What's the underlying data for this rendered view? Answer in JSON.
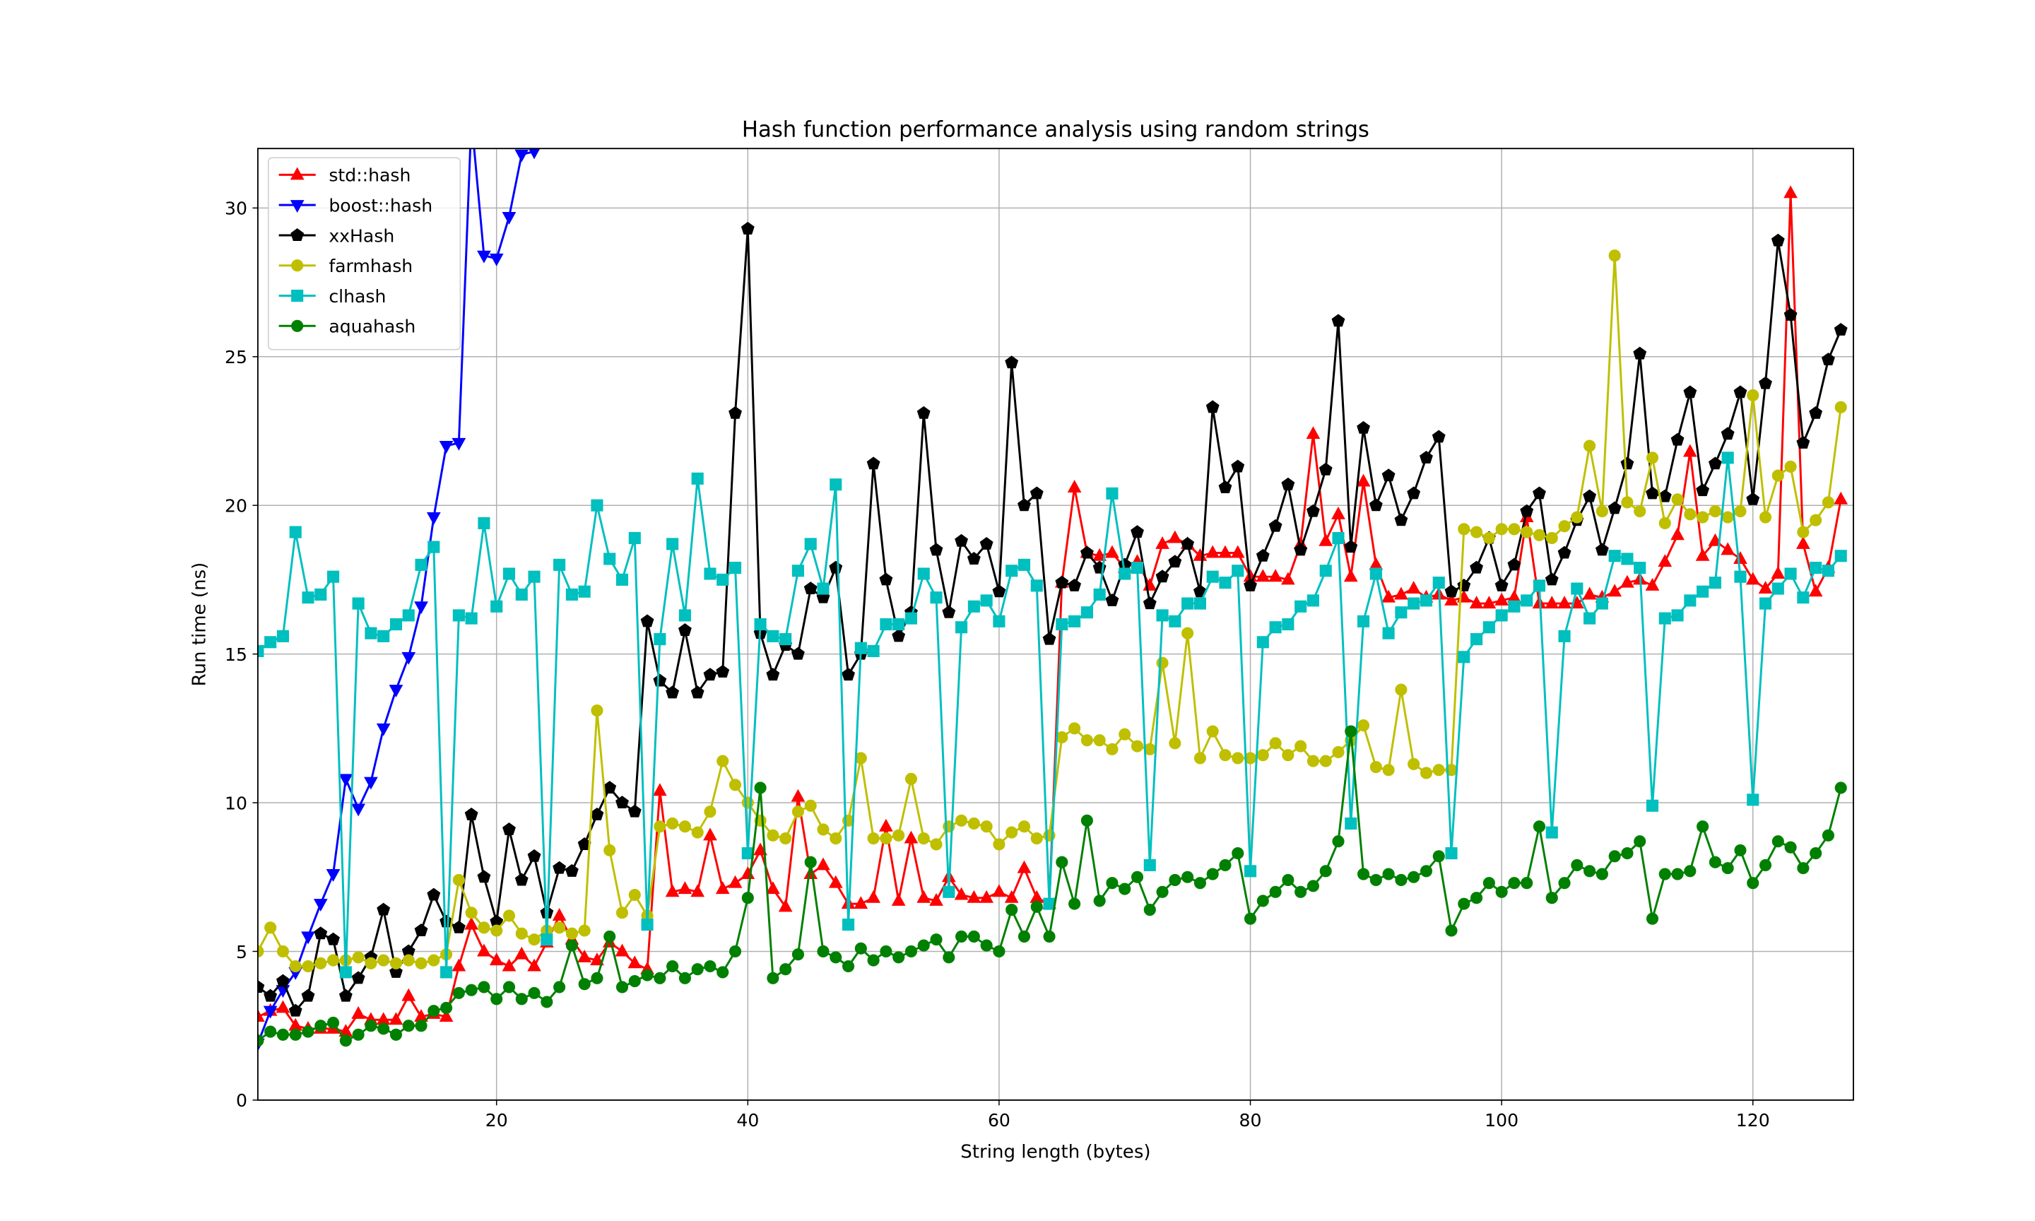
{
  "chart_data": {
    "type": "line",
    "title": "Hash function performance analysis using random strings",
    "x_label": "String length (bytes)",
    "y_label": "Run time (ns)",
    "x": [
      1,
      2,
      3,
      4,
      5,
      6,
      7,
      8,
      9,
      10,
      11,
      12,
      13,
      14,
      15,
      16,
      17,
      18,
      19,
      20,
      21,
      22,
      23,
      24,
      25,
      26,
      27,
      28,
      29,
      30,
      31,
      32,
      33,
      34,
      35,
      36,
      37,
      38,
      39,
      40,
      41,
      42,
      43,
      44,
      45,
      46,
      47,
      48,
      49,
      50,
      51,
      52,
      53,
      54,
      55,
      56,
      57,
      58,
      59,
      60,
      61,
      62,
      63,
      64,
      65,
      66,
      67,
      68,
      69,
      70,
      71,
      72,
      73,
      74,
      75,
      76,
      77,
      78,
      79,
      80,
      81,
      82,
      83,
      84,
      85,
      86,
      87,
      88,
      89,
      90,
      91,
      92,
      93,
      94,
      95,
      96,
      97,
      98,
      99,
      100,
      101,
      102,
      103,
      104,
      105,
      106,
      107,
      108,
      109,
      110,
      111,
      112,
      113,
      114,
      115,
      116,
      117,
      118,
      119,
      120,
      121,
      122,
      123,
      124,
      125,
      126,
      127
    ],
    "series": [
      {
        "name": "std::hash",
        "color": "#ff0000",
        "marker": "^",
        "values": [
          2.8,
          3.0,
          3.1,
          2.5,
          2.4,
          2.4,
          2.4,
          2.3,
          2.9,
          2.7,
          2.7,
          2.7,
          3.5,
          2.8,
          2.9,
          2.8,
          4.5,
          5.9,
          5.0,
          4.7,
          4.5,
          4.9,
          4.5,
          5.3,
          6.2,
          5.4,
          4.8,
          4.7,
          5.3,
          5.0,
          4.6,
          4.4,
          10.4,
          7.0,
          7.1,
          7.0,
          8.9,
          7.1,
          7.3,
          7.6,
          8.4,
          7.1,
          6.5,
          10.2,
          7.6,
          7.9,
          7.3,
          6.6,
          6.6,
          6.8,
          9.2,
          6.7,
          8.8,
          6.8,
          6.7,
          7.5,
          6.9,
          6.8,
          6.8,
          7.0,
          6.8,
          7.8,
          6.8,
          6.6,
          17.4,
          20.6,
          18.4,
          18.3,
          18.4,
          17.9,
          18.1,
          17.3,
          18.7,
          18.9,
          18.7,
          18.3,
          18.4,
          18.4,
          18.4,
          17.6,
          17.6,
          17.6,
          17.5,
          18.7,
          22.4,
          18.8,
          19.7,
          17.6,
          20.8,
          18.0,
          16.9,
          17.0,
          17.2,
          16.9,
          17.0,
          16.8,
          16.9,
          16.7,
          16.7,
          16.8,
          16.9,
          19.6,
          16.7,
          16.7,
          16.7,
          16.7,
          17.0,
          16.9,
          17.1,
          17.4,
          17.5,
          17.3,
          18.1,
          19.0,
          21.8,
          18.3,
          18.8,
          18.5,
          18.2,
          17.5,
          17.2,
          17.7,
          30.5,
          18.7,
          17.1,
          17.9,
          20.2
        ]
      },
      {
        "name": "boost::hash",
        "color": "#0000ff",
        "marker": "v",
        "x": [
          1,
          2,
          3,
          4,
          5,
          6,
          7,
          8,
          9,
          10,
          11,
          12,
          13,
          14,
          15,
          16,
          17,
          18,
          19,
          20,
          21,
          22,
          23,
          24
        ],
        "values": [
          1.9,
          3.0,
          3.7,
          4.3,
          5.5,
          6.6,
          7.6,
          10.8,
          9.8,
          10.7,
          12.5,
          13.8,
          14.9,
          16.6,
          19.6,
          22.0,
          22.1,
          33.0,
          28.4,
          28.3,
          29.7,
          31.8,
          31.9,
          33.0
        ]
      },
      {
        "name": "xxHash",
        "color": "#000000",
        "marker": "p",
        "values": [
          3.8,
          3.5,
          4.0,
          3.0,
          3.5,
          5.6,
          5.4,
          3.5,
          4.1,
          4.8,
          6.4,
          4.3,
          5.0,
          5.7,
          6.9,
          6.0,
          5.8,
          9.6,
          7.5,
          6.0,
          9.1,
          7.4,
          8.2,
          6.3,
          7.8,
          7.7,
          8.6,
          9.6,
          10.5,
          10.0,
          9.7,
          16.1,
          14.1,
          13.7,
          15.8,
          13.7,
          14.3,
          14.4,
          23.1,
          29.3,
          15.7,
          14.3,
          15.3,
          15.0,
          17.2,
          16.9,
          17.9,
          14.3,
          15.0,
          21.4,
          17.5,
          15.6,
          16.4,
          23.1,
          18.5,
          16.4,
          18.8,
          18.2,
          18.7,
          17.1,
          24.8,
          20.0,
          20.4,
          15.5,
          17.4,
          17.3,
          18.4,
          17.9,
          16.8,
          18.0,
          19.1,
          16.7,
          17.6,
          18.1,
          18.7,
          17.1,
          23.3,
          20.6,
          21.3,
          17.3,
          18.3,
          19.3,
          20.7,
          18.5,
          19.8,
          21.2,
          26.2,
          18.6,
          22.6,
          20.0,
          21.0,
          19.5,
          20.4,
          21.6,
          22.3,
          17.1,
          17.3,
          17.9,
          18.9,
          17.3,
          18.0,
          19.8,
          20.4,
          17.5,
          18.4,
          19.5,
          20.3,
          18.5,
          19.9,
          21.4,
          25.1,
          20.4,
          20.3,
          22.2,
          23.8,
          20.5,
          21.4,
          22.4,
          23.8,
          20.2,
          24.1,
          28.9,
          26.4,
          22.1,
          23.1,
          24.9,
          25.9
        ]
      },
      {
        "name": "farmhash",
        "color": "#bfbf00",
        "marker": "o",
        "values": [
          5.0,
          5.8,
          5.0,
          4.5,
          4.5,
          4.6,
          4.7,
          4.7,
          4.8,
          4.6,
          4.7,
          4.6,
          4.7,
          4.6,
          4.7,
          4.9,
          7.4,
          6.3,
          5.8,
          5.7,
          6.2,
          5.6,
          5.4,
          5.7,
          5.8,
          5.6,
          5.7,
          13.1,
          8.4,
          6.3,
          6.9,
          6.2,
          9.2,
          9.3,
          9.2,
          9.0,
          9.7,
          11.4,
          10.6,
          10.0,
          9.4,
          8.9,
          8.8,
          9.7,
          9.9,
          9.1,
          8.8,
          9.4,
          11.5,
          8.8,
          8.8,
          8.9,
          10.8,
          8.8,
          8.6,
          9.2,
          9.4,
          9.3,
          9.2,
          8.6,
          9.0,
          9.2,
          8.8,
          8.9,
          12.2,
          12.5,
          12.1,
          12.1,
          11.8,
          12.3,
          11.9,
          11.8,
          14.7,
          12.0,
          15.7,
          11.5,
          12.4,
          11.6,
          11.5,
          11.5,
          11.6,
          12.0,
          11.6,
          11.9,
          11.4,
          11.4,
          11.7,
          12.1,
          12.6,
          11.2,
          11.1,
          13.8,
          11.3,
          11.0,
          11.1,
          11.1,
          19.2,
          19.1,
          18.9,
          19.2,
          19.2,
          19.1,
          19.0,
          18.9,
          19.3,
          19.6,
          22.0,
          19.8,
          28.4,
          20.1,
          19.8,
          21.6,
          19.4,
          20.2,
          19.7,
          19.6,
          19.8,
          19.6,
          19.8,
          23.7,
          19.6,
          21.0,
          21.3,
          19.1,
          19.5,
          20.1,
          23.3
        ]
      },
      {
        "name": "clhash",
        "color": "#00bfbf",
        "marker": "s",
        "values": [
          15.1,
          15.4,
          15.6,
          19.1,
          16.9,
          17.0,
          17.6,
          4.3,
          16.7,
          15.7,
          15.6,
          16.0,
          16.3,
          18.0,
          18.6,
          4.3,
          16.3,
          16.2,
          19.4,
          16.6,
          17.7,
          17.0,
          17.6,
          5.4,
          18.0,
          17.0,
          17.1,
          20.0,
          18.2,
          17.5,
          18.9,
          5.9,
          15.5,
          18.7,
          16.3,
          20.9,
          17.7,
          17.5,
          17.9,
          8.3,
          16.0,
          15.6,
          15.5,
          17.8,
          18.7,
          17.2,
          20.7,
          5.9,
          15.2,
          15.1,
          16.0,
          16.0,
          16.2,
          17.7,
          16.9,
          7.0,
          15.9,
          16.6,
          16.8,
          16.1,
          17.8,
          18.0,
          17.3,
          6.6,
          16.0,
          16.1,
          16.4,
          17.0,
          20.4,
          17.7,
          17.9,
          7.9,
          16.3,
          16.1,
          16.7,
          16.7,
          17.6,
          17.4,
          17.8,
          7.7,
          15.4,
          15.9,
          16.0,
          16.6,
          16.8,
          17.8,
          18.9,
          9.3,
          16.1,
          17.7,
          15.7,
          16.4,
          16.7,
          16.8,
          17.4,
          8.3,
          14.9,
          15.5,
          15.9,
          16.3,
          16.6,
          16.8,
          17.3,
          9.0,
          15.6,
          17.2,
          16.2,
          16.7,
          18.3,
          18.2,
          17.9,
          9.9,
          16.2,
          16.3,
          16.8,
          17.1,
          17.4,
          21.6,
          17.6,
          10.1,
          16.7,
          17.2,
          17.7,
          16.9,
          17.9,
          17.8,
          18.3
        ]
      },
      {
        "name": "aquahash",
        "color": "#008000",
        "marker": "o",
        "values": [
          2.0,
          2.3,
          2.2,
          2.2,
          2.3,
          2.5,
          2.6,
          2.0,
          2.2,
          2.5,
          2.4,
          2.2,
          2.5,
          2.5,
          3.0,
          3.1,
          3.6,
          3.7,
          3.8,
          3.4,
          3.8,
          3.4,
          3.6,
          3.3,
          3.8,
          5.2,
          3.9,
          4.1,
          5.5,
          3.8,
          4.0,
          4.2,
          4.1,
          4.5,
          4.1,
          4.4,
          4.5,
          4.3,
          5.0,
          6.8,
          10.5,
          4.1,
          4.4,
          4.9,
          8.0,
          5.0,
          4.8,
          4.5,
          5.1,
          4.7,
          5.0,
          4.8,
          5.0,
          5.2,
          5.4,
          4.8,
          5.5,
          5.5,
          5.2,
          5.0,
          6.4,
          5.5,
          6.5,
          5.5,
          8.0,
          6.6,
          9.4,
          6.7,
          7.3,
          7.1,
          7.5,
          6.4,
          7.0,
          7.4,
          7.5,
          7.3,
          7.6,
          7.9,
          8.3,
          6.1,
          6.7,
          7.0,
          7.4,
          7.0,
          7.2,
          7.7,
          8.7,
          12.4,
          7.6,
          7.4,
          7.6,
          7.4,
          7.5,
          7.7,
          8.2,
          5.7,
          6.6,
          6.8,
          7.3,
          7.0,
          7.3,
          7.3,
          9.2,
          6.8,
          7.3,
          7.9,
          7.7,
          7.6,
          8.2,
          8.3,
          8.7,
          6.1,
          7.6,
          7.6,
          7.7,
          9.2,
          8.0,
          7.8,
          8.4,
          7.3,
          7.9,
          8.7,
          8.5,
          7.8,
          8.3,
          8.9,
          10.5
        ]
      }
    ],
    "xlim": [
      1,
      128
    ],
    "xticks": [
      20,
      40,
      60,
      80,
      100,
      120
    ],
    "ylim": [
      0,
      32
    ],
    "yticks": [
      0,
      5,
      10,
      15,
      20,
      25,
      30
    ],
    "grid": true,
    "legend": "upper left"
  }
}
